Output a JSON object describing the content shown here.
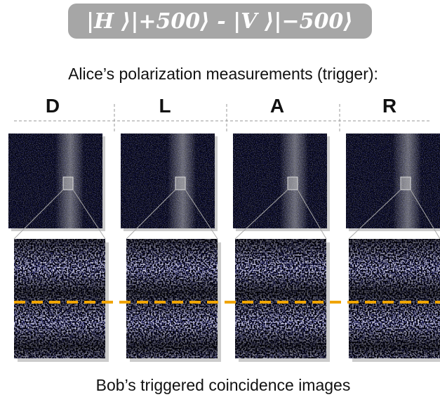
{
  "header": {
    "title": "|H ⟩|+500⟩ - |V ⟩|−500⟩",
    "subtitle": "Alice’s polarization measurements (trigger):"
  },
  "panels": [
    {
      "label": "D"
    },
    {
      "label": "L"
    },
    {
      "label": "A"
    },
    {
      "label": "R"
    }
  ],
  "footer": {
    "caption": "Bob’s triggered coincidence images"
  }
}
